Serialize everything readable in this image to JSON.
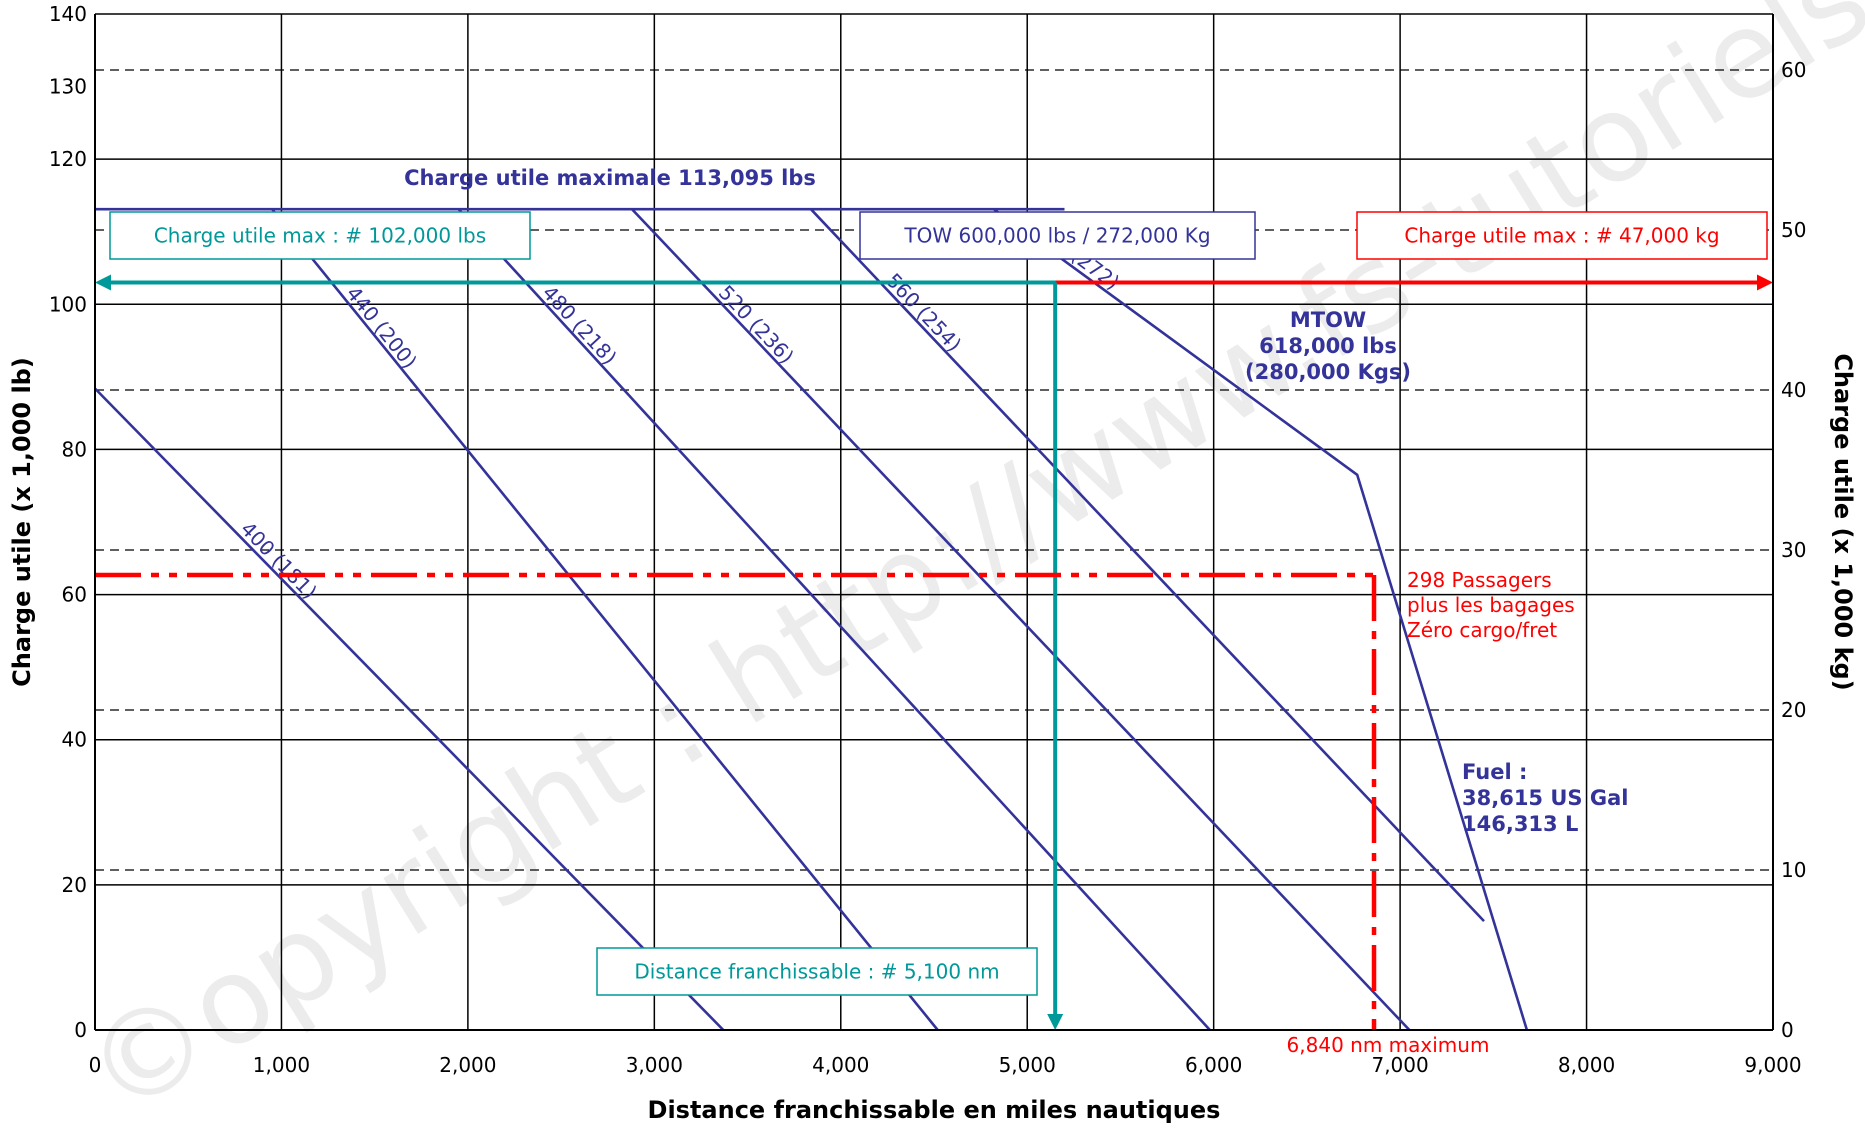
{
  "chart_data": {
    "type": "line",
    "title": "",
    "xlabel": "Distance franchissable en miles nautiques",
    "ylabel": "Charge utile (x 1,000 lb)",
    "ylabel_right": "Charge utile (x 1,000 kg)",
    "xlim": [
      0,
      9000
    ],
    "ylim": [
      0,
      140
    ],
    "ylim_right": [
      0,
      63.5
    ],
    "x_ticks": [
      "0",
      "1,000",
      "2,000",
      "3,000",
      "4,000",
      "5,000",
      "6,000",
      "7,000",
      "8,000",
      "9,000"
    ],
    "y_ticks": [
      "0",
      "20",
      "40",
      "60",
      "80",
      "100",
      "120",
      "130",
      "140"
    ],
    "y_ticks_right": [
      "0",
      "10",
      "20",
      "30",
      "40",
      "50",
      "60"
    ],
    "grid": true,
    "watermark": "©opyright : http://www.fs-tutoriels.com",
    "series": [
      {
        "name": "400 (181)",
        "color": "#333399",
        "points": [
          [
            0,
            88.4
          ],
          [
            3370,
            0
          ]
        ]
      },
      {
        "name": "440 (200)",
        "color": "#333399",
        "points": [
          [
            950,
            113.1
          ],
          [
            4520,
            0
          ]
        ]
      },
      {
        "name": "480 (218)",
        "color": "#333399",
        "points": [
          [
            1950,
            113.1
          ],
          [
            5980,
            0
          ]
        ]
      },
      {
        "name": "520 (236)",
        "color": "#333399",
        "points": [
          [
            2880,
            113.1
          ],
          [
            7050,
            0
          ]
        ]
      },
      {
        "name": "560 (254)",
        "color": "#333399",
        "points": [
          [
            3840,
            113.1
          ],
          [
            7450,
            15
          ]
        ]
      },
      {
        "name": "600 (272)",
        "color": "#333399",
        "points": [
          [
            4820,
            113.1
          ],
          [
            6770,
            76.5
          ],
          [
            7680,
            0
          ]
        ]
      },
      {
        "name": "Charge utile maximale",
        "color": "#333399",
        "points": [
          [
            0,
            113.1
          ],
          [
            5200,
            113.1
          ]
        ]
      }
    ],
    "markers": {
      "payload_max_line": {
        "y": 103,
        "x_range": [
          0,
          5150
        ],
        "color": "#009999"
      },
      "range_line": {
        "x": 5150,
        "y_range": [
          0,
          103
        ],
        "color": "#009999"
      },
      "payload_max_kg_line": {
        "y": 103,
        "x_range": [
          5150,
          9000
        ],
        "color": "#ff0000"
      },
      "passengers_line": {
        "y": 62.7,
        "x_range": [
          0,
          6860
        ],
        "color": "#ff0000"
      },
      "max_range_line": {
        "x": 6860,
        "y_range": [
          0,
          62.7
        ],
        "color": "#ff0000"
      }
    },
    "annotations": {
      "max_payload": "Charge utile maximale 113,095 lbs",
      "box_lbs": "Charge utile max : # 102,000 lbs",
      "box_tow": "TOW 600,000 lbs / 272,000 Kg",
      "box_kg": "Charge utile max : # 47,000 kg",
      "box_range": "Distance franchissable : # 5,100 nm",
      "mtow_lines": [
        "MTOW",
        "618,000 lbs",
        "(280,000 Kgs)"
      ],
      "passengers_lines": [
        "298 Passagers",
        "plus les bagages",
        "Zéro cargo/fret"
      ],
      "fuel_lines": [
        "Fuel :",
        "38,615 US Gal",
        "146,313 L"
      ],
      "max_range": "6,840 nm maximum"
    }
  }
}
